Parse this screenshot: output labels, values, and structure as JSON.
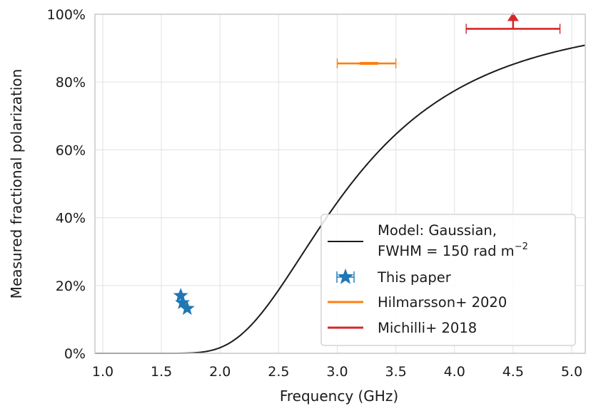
{
  "chart_data": {
    "type": "line",
    "xlabel": "Frequency (GHz)",
    "ylabel": "Measured fractional polarization",
    "xlim": [
      0.933,
      5.116
    ],
    "ylim": [
      0,
      100
    ],
    "grid": true,
    "xticks": [
      1.0,
      1.5,
      2.0,
      2.5,
      3.0,
      3.5,
      4.0,
      4.5,
      5.0
    ],
    "xtick_labels": [
      "1.0",
      "1.5",
      "2.0",
      "2.5",
      "3.0",
      "3.5",
      "4.0",
      "4.5",
      "5.0"
    ],
    "yticks": [
      0,
      20,
      40,
      60,
      80,
      100
    ],
    "ytick_labels": [
      "0%",
      "20%",
      "40%",
      "60%",
      "80%",
      "100%"
    ],
    "legend_placement": "lower-right",
    "model": {
      "name_line1": "Model: Gaussian,",
      "name_line2": "FWHM = 150 rad m",
      "name_sup": "−2",
      "fwhm_rad_m2": 150,
      "color": "#1a1a1a"
    },
    "series": [
      {
        "name": "This paper",
        "marker": "star",
        "color": "#1f77b4",
        "points": [
          {
            "x": 1.665,
            "y": 17.0,
            "xerr": 0.01
          },
          {
            "x": 1.68,
            "y": 14.9,
            "xerr": 0.01
          },
          {
            "x": 1.72,
            "y": 13.2,
            "xerr": 0.0
          }
        ]
      },
      {
        "name": "Hilmarsson+ 2020",
        "marker": "line",
        "color": "#ff7f0e",
        "points": [
          {
            "x": 3.27,
            "y": 85.5,
            "xmin": 3.0,
            "xmax": 3.5
          }
        ]
      },
      {
        "name": "Michilli+ 2018",
        "marker": "line",
        "color": "#d62728",
        "lower_limit": true,
        "points": [
          {
            "x": 4.5,
            "y": 95.7,
            "xmin": 4.1,
            "xmax": 4.9
          }
        ]
      }
    ]
  }
}
